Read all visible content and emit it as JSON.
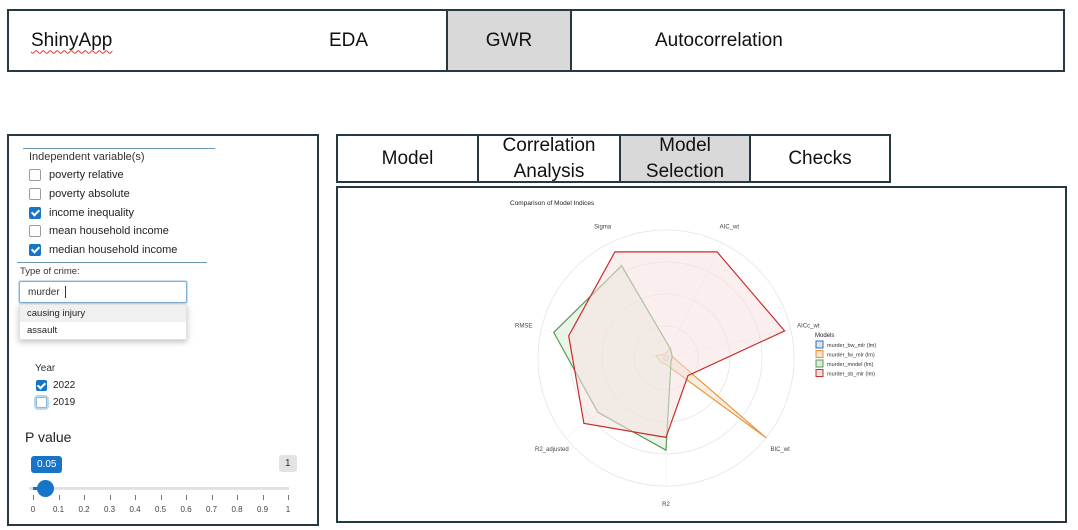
{
  "topnav": {
    "brand": "ShinyApp",
    "items": [
      "EDA",
      "GWR",
      "Autocorrelation"
    ],
    "active": "GWR"
  },
  "sidebar": {
    "independent_title": "Independent variable(s)",
    "variables": [
      {
        "label": "poverty relative",
        "checked": false
      },
      {
        "label": "poverty absolute",
        "checked": false
      },
      {
        "label": "income inequality",
        "checked": true
      },
      {
        "label": "mean household income",
        "checked": false
      },
      {
        "label": "median household income",
        "checked": true
      }
    ],
    "crime_label": "Type of crime:",
    "crime_value": "murder",
    "crime_options": [
      "causing injury",
      "assault"
    ],
    "year_label": "Year",
    "years": [
      {
        "label": "2022",
        "checked": true
      },
      {
        "label": "2019",
        "checked": false
      }
    ],
    "pvalue_label": "P value",
    "pvalue_value": "0.05",
    "pvalue_max": "1",
    "pvalue_fraction": 0.05,
    "pvalue_ticks": [
      "0",
      "0.1",
      "0.2",
      "0.3",
      "0.4",
      "0.5",
      "0.6",
      "0.7",
      "0.8",
      "0.9",
      "1"
    ]
  },
  "tabs": [
    "Model",
    "Correlation Analysis",
    "Model Selection",
    "Checks"
  ],
  "active_tab": "Model Selection",
  "chart_data": {
    "type": "radar",
    "title": "Comparison of Model Indices",
    "axes": [
      "AIC_wt",
      "AICc_wt",
      "BIC_wt",
      "R2",
      "R2_adjusted",
      "RMSE",
      "Sigma"
    ],
    "rlim": [
      0,
      1
    ],
    "legend_title": "Models",
    "legend_position": "right",
    "series": [
      {
        "name": "murder_bw_mlr (lm)",
        "color": "#2f6fb0",
        "fill": "#dbe6f5",
        "values": [
          0.02,
          0.02,
          0.02,
          0.02,
          0.02,
          0.02,
          0.02
        ]
      },
      {
        "name": "murder_fw_mlr (lm)",
        "color": "#e8953a",
        "fill": "#f7e3cc",
        "values": [
          0.08,
          0.05,
          1.0,
          0.05,
          0.05,
          0.08,
          0.03
        ]
      },
      {
        "name": "murder_model (lm)",
        "color": "#5a9a5a",
        "fill": "#d8ecd8",
        "values": [
          0.08,
          0.05,
          0.05,
          0.72,
          0.68,
          0.9,
          0.8
        ]
      },
      {
        "name": "murder_sb_mlr (lm)",
        "color": "#cc2b2b",
        "fill": "#f6e0e0",
        "values": [
          0.92,
          0.95,
          0.22,
          0.62,
          0.82,
          0.78,
          0.92
        ]
      }
    ]
  }
}
